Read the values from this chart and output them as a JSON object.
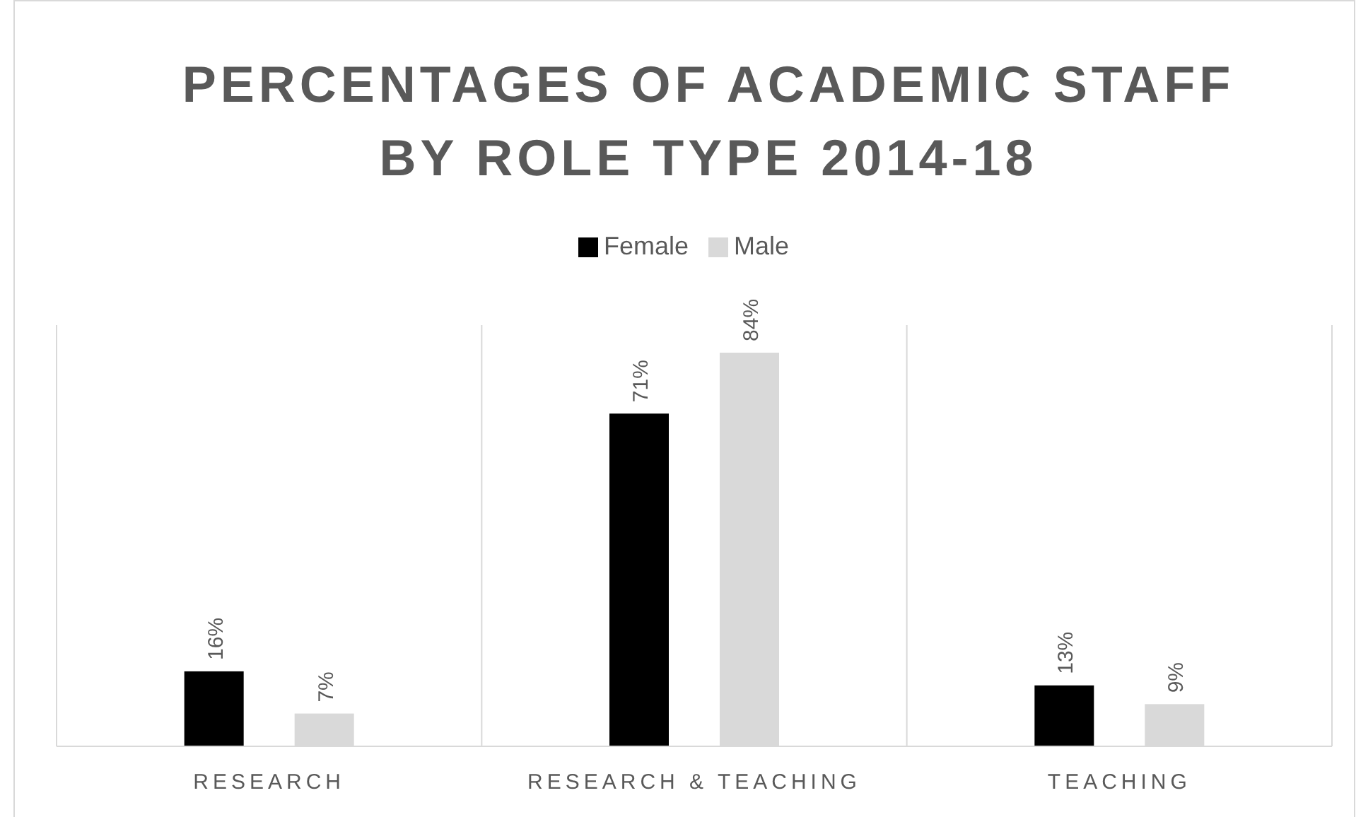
{
  "chart_data": {
    "type": "bar",
    "title": "PERCENTAGES OF ACADEMIC STAFF BY ROLE TYPE 2014-18",
    "categories": [
      "RESEARCH",
      "RESEARCH & TEACHING",
      "TEACHING"
    ],
    "series": [
      {
        "name": "Female",
        "color": "#000000",
        "values": [
          16,
          71,
          13
        ],
        "value_labels": [
          "16%",
          "71%",
          "13%"
        ]
      },
      {
        "name": "Male",
        "color": "#d9d9d9",
        "values": [
          7,
          84,
          9
        ],
        "value_labels": [
          "7%",
          "84%",
          "9%"
        ]
      }
    ],
    "grid": "x",
    "legend": "top"
  }
}
